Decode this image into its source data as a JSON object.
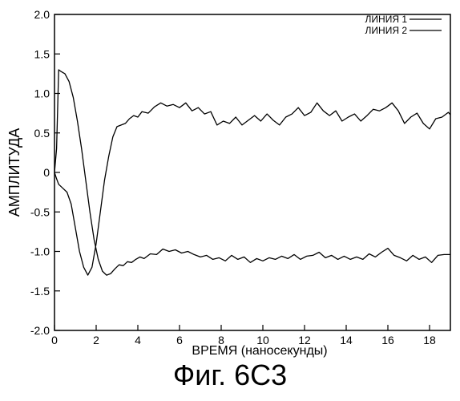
{
  "figure_caption": "Фиг. 6C3",
  "chart_data": {
    "type": "line",
    "xlabel": "ВРЕМЯ (наносекунды)",
    "ylabel": "АМПЛИТУДА",
    "xlim": [
      0,
      19
    ],
    "ylim": [
      -2.0,
      2.0
    ],
    "x_ticks": [
      0,
      2,
      4,
      6,
      8,
      10,
      12,
      14,
      16,
      18
    ],
    "y_ticks": [
      -2.0,
      -1.5,
      -1.0,
      -0.5,
      0,
      0.5,
      1.0,
      1.5,
      2.0
    ],
    "x_tick_labels": [
      "0",
      "2",
      "4",
      "6",
      "8",
      "10",
      "12",
      "14",
      "16",
      "18"
    ],
    "y_tick_labels": [
      "-2.0",
      "-1.5",
      "-1.0",
      "-0.5",
      "0",
      "0.5",
      "1.0",
      "1.5",
      "2.0"
    ],
    "grid": false,
    "legend": "top-right",
    "line_color": "#000000",
    "series": [
      {
        "name": "ЛИНИЯ 1",
        "x": [
          0,
          0.1,
          0.2,
          0.3,
          0.5,
          0.7,
          0.9,
          1.1,
          1.3,
          1.5,
          1.7,
          1.9,
          2.1,
          2.3,
          2.5,
          2.7,
          2.9,
          3.1,
          3.3,
          3.5,
          3.7,
          3.9,
          4.1,
          4.3,
          4.6,
          4.9,
          5.2,
          5.5,
          5.8,
          6.1,
          6.4,
          6.7,
          7.0,
          7.3,
          7.6,
          7.9,
          8.2,
          8.5,
          8.8,
          9.1,
          9.4,
          9.7,
          10.0,
          10.3,
          10.6,
          10.9,
          11.2,
          11.5,
          11.8,
          12.1,
          12.4,
          12.7,
          13.0,
          13.3,
          13.6,
          13.9,
          14.2,
          14.5,
          14.8,
          15.1,
          15.4,
          15.7,
          16.0,
          16.3,
          16.6,
          16.9,
          17.2,
          17.5,
          17.8,
          18.1,
          18.4,
          18.7,
          19.0
        ],
        "y": [
          0.0,
          0.3,
          1.3,
          1.28,
          1.25,
          1.15,
          0.95,
          0.65,
          0.3,
          -0.1,
          -0.5,
          -0.85,
          -1.1,
          -1.25,
          -1.3,
          -1.28,
          -1.22,
          -1.17,
          -1.18,
          -1.13,
          -1.14,
          -1.1,
          -1.07,
          -1.09,
          -1.03,
          -1.04,
          -0.97,
          -1.0,
          -0.98,
          -1.02,
          -1.0,
          -1.04,
          -1.07,
          -1.05,
          -1.1,
          -1.08,
          -1.12,
          -1.05,
          -1.1,
          -1.07,
          -1.14,
          -1.09,
          -1.12,
          -1.08,
          -1.1,
          -1.06,
          -1.09,
          -1.04,
          -1.1,
          -1.06,
          -1.05,
          -1.01,
          -1.08,
          -1.05,
          -1.1,
          -1.06,
          -1.1,
          -1.07,
          -1.1,
          -1.03,
          -1.07,
          -1.01,
          -0.96,
          -1.05,
          -1.08,
          -1.12,
          -1.05,
          -1.1,
          -1.07,
          -1.14,
          -1.05,
          -1.04,
          -1.04
        ]
      },
      {
        "name": "ЛИНИЯ 2",
        "x": [
          0,
          0.1,
          0.2,
          0.4,
          0.6,
          0.8,
          1.0,
          1.2,
          1.4,
          1.6,
          1.8,
          2.0,
          2.2,
          2.4,
          2.6,
          2.8,
          3.0,
          3.2,
          3.4,
          3.6,
          3.8,
          4.0,
          4.2,
          4.5,
          4.8,
          5.1,
          5.4,
          5.7,
          6.0,
          6.3,
          6.6,
          6.9,
          7.2,
          7.5,
          7.8,
          8.1,
          8.4,
          8.7,
          9.0,
          9.3,
          9.6,
          9.9,
          10.2,
          10.5,
          10.8,
          11.1,
          11.4,
          11.7,
          12.0,
          12.3,
          12.6,
          12.9,
          13.2,
          13.5,
          13.8,
          14.1,
          14.4,
          14.7,
          15.0,
          15.3,
          15.6,
          15.9,
          16.2,
          16.5,
          16.8,
          17.1,
          17.4,
          17.7,
          18.0,
          18.3,
          18.6,
          18.9,
          19.0
        ],
        "y": [
          0.0,
          -0.08,
          -0.15,
          -0.2,
          -0.25,
          -0.4,
          -0.7,
          -1.0,
          -1.2,
          -1.3,
          -1.2,
          -0.9,
          -0.5,
          -0.1,
          0.2,
          0.45,
          0.58,
          0.6,
          0.62,
          0.68,
          0.72,
          0.7,
          0.77,
          0.75,
          0.83,
          0.88,
          0.84,
          0.86,
          0.82,
          0.88,
          0.78,
          0.82,
          0.74,
          0.77,
          0.6,
          0.65,
          0.62,
          0.7,
          0.6,
          0.66,
          0.72,
          0.65,
          0.74,
          0.66,
          0.6,
          0.7,
          0.74,
          0.82,
          0.72,
          0.76,
          0.88,
          0.78,
          0.72,
          0.78,
          0.65,
          0.7,
          0.74,
          0.65,
          0.72,
          0.8,
          0.78,
          0.82,
          0.88,
          0.78,
          0.62,
          0.7,
          0.75,
          0.62,
          0.55,
          0.68,
          0.7,
          0.76,
          0.73
        ]
      }
    ]
  }
}
